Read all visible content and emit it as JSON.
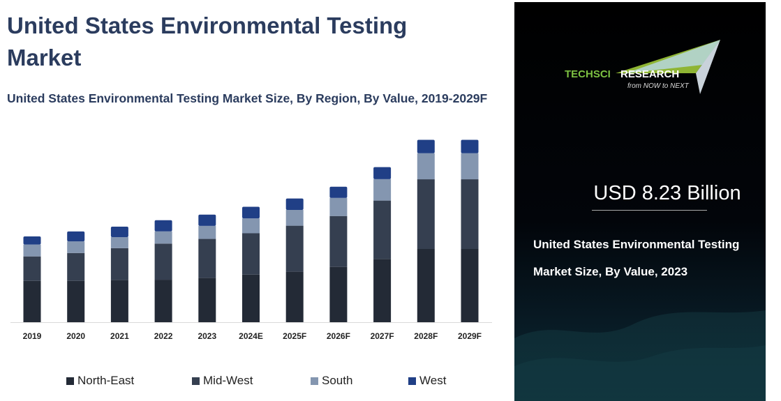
{
  "title": "United States Environmental Testing Market",
  "subtitle": "United States Environmental Testing Market Size, By Region, By Value, 2019-2029F",
  "chart_data": {
    "type": "bar",
    "stacked": true,
    "title": "United States Environmental Testing Market Size, By Region, By Value, 2019-2029F",
    "xlabel": "",
    "ylabel": "",
    "unit": "USD Billion (estimated; no y-axis printed)",
    "categories": [
      "2019",
      "2020",
      "2021",
      "2022",
      "2023",
      "2024E",
      "2025F",
      "2026F",
      "2027F",
      "2028F",
      "2029F"
    ],
    "series": [
      {
        "name": "North-East",
        "color": "#232a36",
        "values": [
          3.16,
          3.16,
          3.22,
          3.25,
          3.38,
          3.64,
          3.86,
          4.23,
          4.84,
          5.6,
          5.6
        ]
      },
      {
        "name": "Mid-West",
        "color": "#353f50",
        "values": [
          1.87,
          2.13,
          2.44,
          2.76,
          2.99,
          3.16,
          3.52,
          3.89,
          4.46,
          5.33,
          5.33
        ]
      },
      {
        "name": "South",
        "color": "#8496b0",
        "values": [
          0.91,
          0.89,
          0.85,
          0.94,
          1.0,
          1.14,
          1.21,
          1.39,
          1.64,
          1.99,
          1.99
        ]
      },
      {
        "name": "West",
        "color": "#203f86",
        "values": [
          0.62,
          0.76,
          0.8,
          0.85,
          0.86,
          0.89,
          0.87,
          0.85,
          0.92,
          1.03,
          1.03
        ]
      }
    ],
    "ylim": [
      0,
      15
    ],
    "grid": false,
    "legend": "bottom"
  },
  "panel": {
    "logo_text_1": "TECHSCI",
    "logo_text_2": "RESEARCH",
    "logo_tagline": "from NOW to NEXT",
    "value": "USD 8.23 Billion",
    "description": "United States Environmental Testing Market Size, By Value, 2023"
  }
}
